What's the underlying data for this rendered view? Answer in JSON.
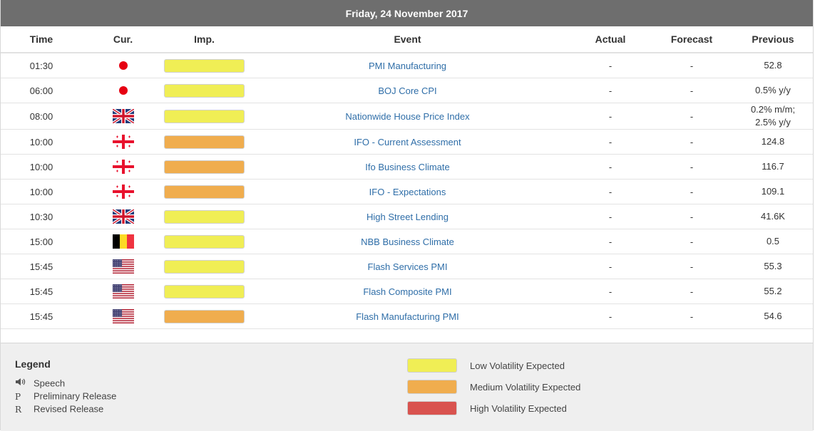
{
  "date_title": "Friday, 24 November 2017",
  "columns": {
    "time": "Time",
    "currency": "Cur.",
    "importance": "Imp.",
    "event": "Event",
    "actual": "Actual",
    "forecast": "Forecast",
    "previous": "Previous"
  },
  "colors": {
    "low": "#f0ee55",
    "medium": "#f0ad4e",
    "high": "#d9534f"
  },
  "rows": [
    {
      "time": "01:30",
      "flag": "jp-flag-icon",
      "importance": "low",
      "event": "PMI Manufacturing",
      "actual": "-",
      "forecast": "-",
      "previous": "52.8"
    },
    {
      "time": "06:00",
      "flag": "jp-flag-icon",
      "importance": "low",
      "event": "BOJ Core CPI",
      "actual": "-",
      "forecast": "-",
      "previous": "0.5% y/y"
    },
    {
      "time": "08:00",
      "flag": "gb-flag-icon",
      "importance": "low",
      "event": "Nationwide House Price Index",
      "actual": "-",
      "forecast": "-",
      "previous": "0.2% m/m; 2.5% y/y"
    },
    {
      "time": "10:00",
      "flag": "ge-flag-icon",
      "importance": "medium",
      "event": "IFO - Current Assessment",
      "actual": "-",
      "forecast": "-",
      "previous": "124.8"
    },
    {
      "time": "10:00",
      "flag": "ge-flag-icon",
      "importance": "medium",
      "event": "Ifo Business Climate",
      "actual": "-",
      "forecast": "-",
      "previous": "116.7"
    },
    {
      "time": "10:00",
      "flag": "ge-flag-icon",
      "importance": "medium",
      "event": "IFO - Expectations",
      "actual": "-",
      "forecast": "-",
      "previous": "109.1"
    },
    {
      "time": "10:30",
      "flag": "gb-flag-icon",
      "importance": "low",
      "event": "High Street Lending",
      "actual": "-",
      "forecast": "-",
      "previous": "41.6K"
    },
    {
      "time": "15:00",
      "flag": "be-flag-icon",
      "importance": "low",
      "event": "NBB Business Climate",
      "actual": "-",
      "forecast": "-",
      "previous": "0.5"
    },
    {
      "time": "15:45",
      "flag": "us-flag-icon",
      "importance": "low",
      "event": "Flash Services PMI",
      "actual": "-",
      "forecast": "-",
      "previous": "55.3"
    },
    {
      "time": "15:45",
      "flag": "us-flag-icon",
      "importance": "low",
      "event": "Flash Composite PMI",
      "actual": "-",
      "forecast": "-",
      "previous": "55.2"
    },
    {
      "time": "15:45",
      "flag": "us-flag-icon",
      "importance": "medium",
      "event": "Flash Manufacturing PMI",
      "actual": "-",
      "forecast": "-",
      "previous": "54.6"
    }
  ],
  "legend": {
    "title": "Legend",
    "items": [
      {
        "icon": "speaker-icon",
        "label": "Speech"
      },
      {
        "symbol": "P",
        "label": "Preliminary Release"
      },
      {
        "symbol": "R",
        "label": "Revised Release"
      }
    ],
    "volatility": [
      {
        "level": "low",
        "label": "Low Volatility Expected"
      },
      {
        "level": "medium",
        "label": "Medium Volatility Expected"
      },
      {
        "level": "high",
        "label": "High Volatility Expected"
      }
    ]
  }
}
